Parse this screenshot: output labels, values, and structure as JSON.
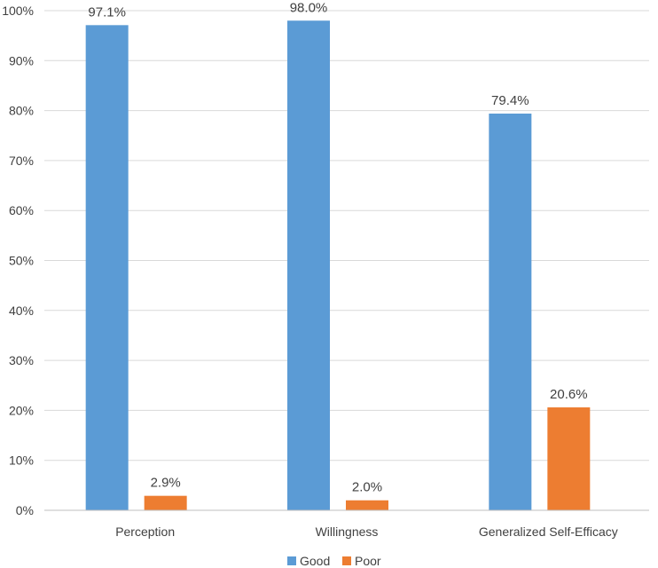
{
  "chart_data": {
    "type": "bar",
    "title": "",
    "xlabel": "",
    "ylabel": "",
    "categories": [
      "Perception",
      "Willingness",
      "Generalized Self-Efficacy"
    ],
    "series": [
      {
        "name": "Good",
        "color": "#5b9bd5",
        "values": [
          97.1,
          98.0,
          79.4
        ],
        "labels": [
          "97.1%",
          "98.0%",
          "79.4%"
        ]
      },
      {
        "name": "Poor",
        "color": "#ed7d31",
        "values": [
          2.9,
          2.0,
          20.6
        ],
        "labels": [
          "2.9%",
          "2.0%",
          "20.6%"
        ]
      }
    ],
    "ylim": [
      0,
      100
    ],
    "yticks": [
      0,
      10,
      20,
      30,
      40,
      50,
      60,
      70,
      80,
      90,
      100
    ],
    "ytick_labels": [
      "0%",
      "10%",
      "20%",
      "30%",
      "40%",
      "50%",
      "60%",
      "70%",
      "80%",
      "90%",
      "100%"
    ],
    "grid": true,
    "legend_position": "bottom-center"
  }
}
